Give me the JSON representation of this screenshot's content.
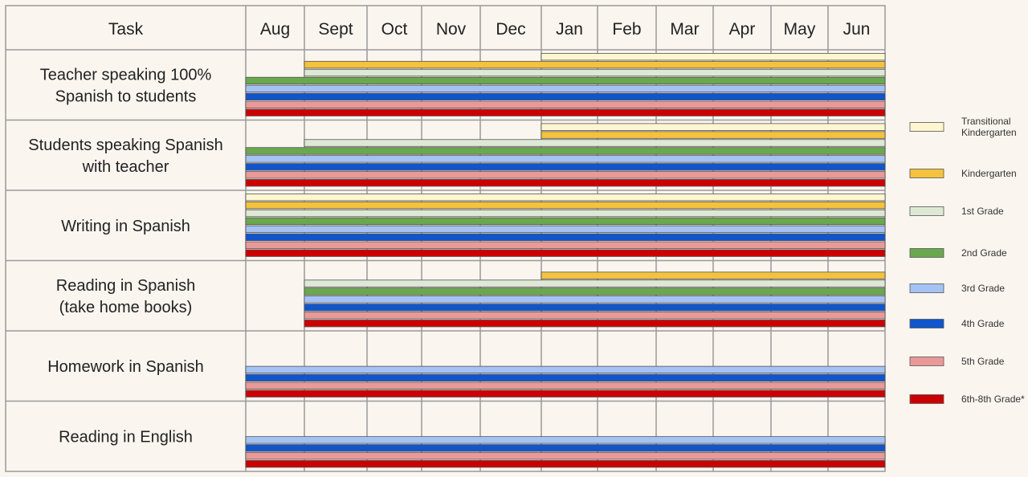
{
  "chart_data": {
    "type": "bar",
    "subtype": "gantt",
    "header_task": "Task",
    "months": [
      "Aug",
      "Sept",
      "Oct",
      "Nov",
      "Dec",
      "Jan",
      "Feb",
      "Mar",
      "Apr",
      "May",
      "Jun"
    ],
    "legend_position": "right",
    "series": [
      {
        "key": "tk",
        "name_lines": [
          "Transitional",
          "Kindergarten"
        ],
        "color": "#fdf6d0"
      },
      {
        "key": "k",
        "name_lines": [
          "Kindergarten"
        ],
        "color": "#f4c23c"
      },
      {
        "key": "g1",
        "name_lines": [
          "1st Grade"
        ],
        "color": "#dde9d5"
      },
      {
        "key": "g2",
        "name_lines": [
          "2nd Grade"
        ],
        "color": "#6aa84f"
      },
      {
        "key": "g3",
        "name_lines": [
          "3rd Grade"
        ],
        "color": "#a4c2f4"
      },
      {
        "key": "g4",
        "name_lines": [
          "4th Grade"
        ],
        "color": "#1155cc"
      },
      {
        "key": "g5",
        "name_lines": [
          "5th Grade"
        ],
        "color": "#ea9999"
      },
      {
        "key": "g68",
        "name_lines": [
          "6th-8th Grade*"
        ],
        "color": "#cc0000"
      }
    ],
    "tasks": [
      {
        "label_lines": [
          "Teacher speaking 100%",
          "Spanish to students"
        ],
        "bars": [
          {
            "series": "tk",
            "start": "Jan",
            "end": "Jun"
          },
          {
            "series": "k",
            "start": "Sept",
            "end": "Jun"
          },
          {
            "series": "g1",
            "start": "Sept",
            "end": "Jun"
          },
          {
            "series": "g2",
            "start": "Aug",
            "end": "Jun"
          },
          {
            "series": "g3",
            "start": "Aug",
            "end": "Jun"
          },
          {
            "series": "g4",
            "start": "Aug",
            "end": "Jun"
          },
          {
            "series": "g5",
            "start": "Aug",
            "end": "Jun"
          },
          {
            "series": "g68",
            "start": "Aug",
            "end": "Jun"
          }
        ]
      },
      {
        "label_lines": [
          "Students speaking Spanish",
          "with teacher"
        ],
        "bars": [
          {
            "series": "tk",
            "start": "Jan",
            "end": "Jun"
          },
          {
            "series": "k",
            "start": "Jan",
            "end": "Jun"
          },
          {
            "series": "g1",
            "start": "Sept",
            "end": "Jun"
          },
          {
            "series": "g2",
            "start": "Aug",
            "end": "Jun"
          },
          {
            "series": "g3",
            "start": "Aug",
            "end": "Jun"
          },
          {
            "series": "g4",
            "start": "Aug",
            "end": "Jun"
          },
          {
            "series": "g5",
            "start": "Aug",
            "end": "Jun"
          },
          {
            "series": "g68",
            "start": "Aug",
            "end": "Jun"
          }
        ]
      },
      {
        "label_lines": [
          "Writing in Spanish"
        ],
        "bars": [
          {
            "series": "tk",
            "start": "Aug",
            "end": "Jun"
          },
          {
            "series": "k",
            "start": "Aug",
            "end": "Jun"
          },
          {
            "series": "g1",
            "start": "Aug",
            "end": "Jun"
          },
          {
            "series": "g2",
            "start": "Aug",
            "end": "Jun"
          },
          {
            "series": "g3",
            "start": "Aug",
            "end": "Jun"
          },
          {
            "series": "g4",
            "start": "Aug",
            "end": "Jun"
          },
          {
            "series": "g5",
            "start": "Aug",
            "end": "Jun"
          },
          {
            "series": "g68",
            "start": "Aug",
            "end": "Jun"
          }
        ]
      },
      {
        "label_lines": [
          "Reading in Spanish",
          "(take home books)"
        ],
        "bars": [
          {
            "series": "k",
            "start": "Jan",
            "end": "Jun"
          },
          {
            "series": "g1",
            "start": "Sept",
            "end": "Jun"
          },
          {
            "series": "g2",
            "start": "Sept",
            "end": "Jun"
          },
          {
            "series": "g3",
            "start": "Sept",
            "end": "Jun"
          },
          {
            "series": "g4",
            "start": "Sept",
            "end": "Jun"
          },
          {
            "series": "g5",
            "start": "Sept",
            "end": "Jun"
          },
          {
            "series": "g68",
            "start": "Sept",
            "end": "Jun"
          }
        ]
      },
      {
        "label_lines": [
          "Homework in Spanish"
        ],
        "bars": [
          {
            "series": "g3",
            "start": "Aug",
            "end": "Jun"
          },
          {
            "series": "g4",
            "start": "Aug",
            "end": "Jun"
          },
          {
            "series": "g5",
            "start": "Aug",
            "end": "Jun"
          },
          {
            "series": "g68",
            "start": "Aug",
            "end": "Jun"
          }
        ]
      },
      {
        "label_lines": [
          "Reading in  English"
        ],
        "bars": [
          {
            "series": "g3",
            "start": "Aug",
            "end": "Jun"
          },
          {
            "series": "g4",
            "start": "Aug",
            "end": "Jun"
          },
          {
            "series": "g5",
            "start": "Aug",
            "end": "Jun"
          },
          {
            "series": "g68",
            "start": "Aug",
            "end": "Jun"
          }
        ]
      }
    ]
  }
}
